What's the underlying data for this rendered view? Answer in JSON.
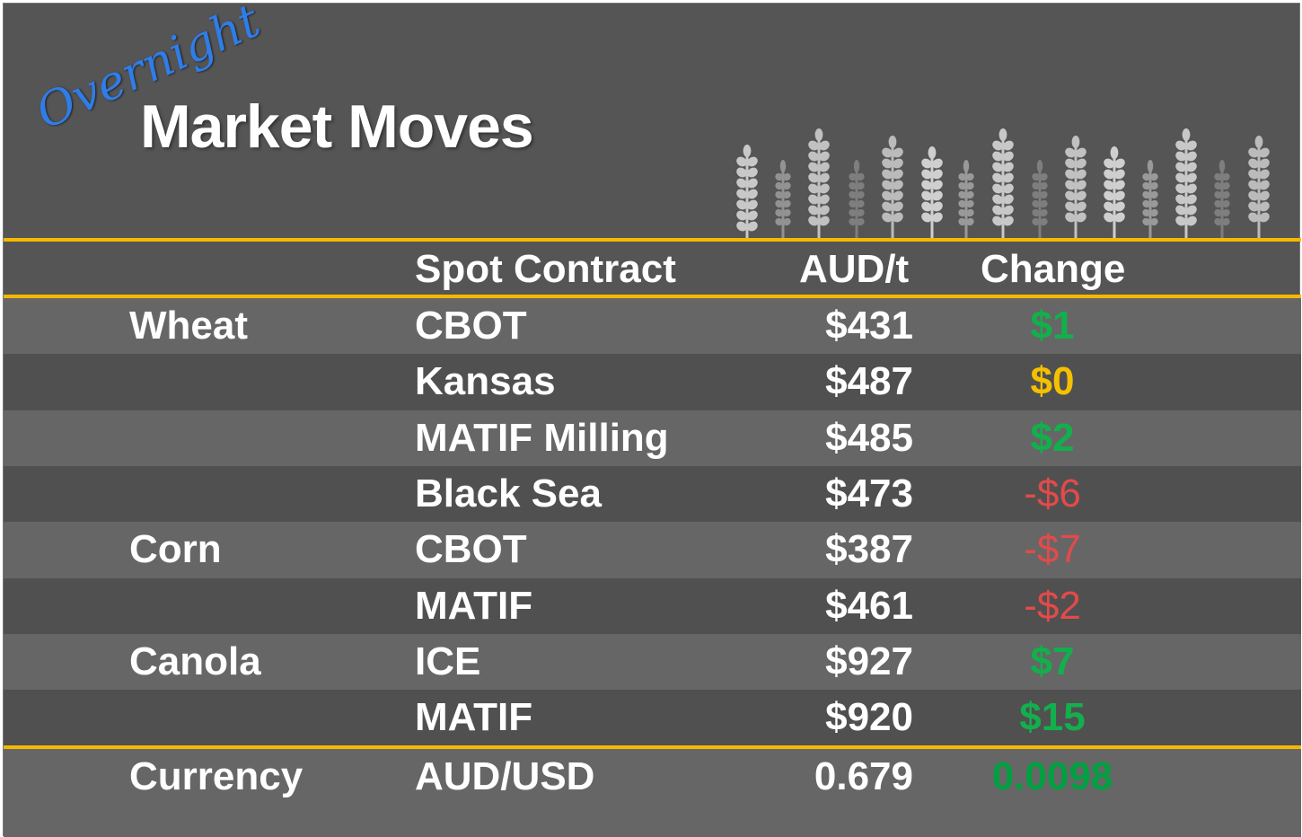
{
  "header": {
    "script_title": "Overnight",
    "title": "Market Moves"
  },
  "icons": {
    "decoration": "wheat-stalk-icon"
  },
  "colors": {
    "accent_line": "#f5b800",
    "positive": "#12b04c",
    "neutral": "#f5c000",
    "negative": "#e34a4a",
    "currency_positive": "#00a040"
  },
  "columns": {
    "contract": "Spot Contract",
    "price": "AUD/t",
    "change": "Change"
  },
  "rows": [
    {
      "commodity": "Wheat",
      "contract": "CBOT",
      "price": "$431",
      "change": "$1",
      "direction": "up"
    },
    {
      "commodity": "",
      "contract": "Kansas",
      "price": "$487",
      "change": "$0",
      "direction": "flat"
    },
    {
      "commodity": "",
      "contract": "MATIF Milling",
      "price": "$485",
      "change": "$2",
      "direction": "up"
    },
    {
      "commodity": "",
      "contract": "Black Sea",
      "price": "$473",
      "change": "-$6",
      "direction": "down"
    },
    {
      "commodity": "Corn",
      "contract": "CBOT",
      "price": "$387",
      "change": "-$7",
      "direction": "down"
    },
    {
      "commodity": "",
      "contract": "MATIF",
      "price": "$461",
      "change": "-$2",
      "direction": "down"
    },
    {
      "commodity": "Canola",
      "contract": "ICE",
      "price": "$927",
      "change": "$7",
      "direction": "up"
    },
    {
      "commodity": "",
      "contract": "MATIF",
      "price": "$920",
      "change": "$15",
      "direction": "up"
    }
  ],
  "currency": {
    "label": "Currency",
    "contract": "AUD/USD",
    "price": "0.679",
    "change": "0.0098",
    "direction": "up"
  }
}
